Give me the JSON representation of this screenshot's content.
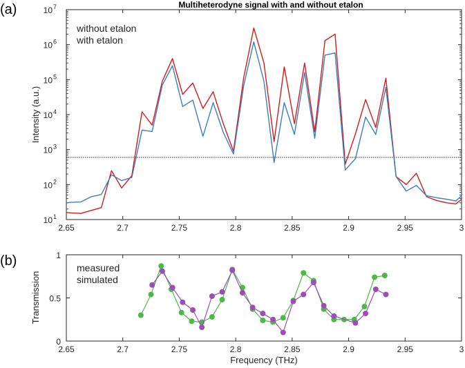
{
  "colors": {
    "without": "#d7191c",
    "with": "#3a7ebf",
    "measured": "#9b4fb5",
    "simulated": "#4db848",
    "axis": "#262626"
  },
  "chart_data": [
    {
      "panel_label": "(a)",
      "type": "line",
      "title": "Multiheterodyne signal with and without etalon",
      "xlabel": "",
      "ylabel": "Intensity (a.u.)",
      "yscale": "log",
      "xlim": [
        2.65,
        3.0
      ],
      "ylim": [
        10,
        10000000
      ],
      "x_ticks": [
        2.65,
        2.7,
        2.75,
        2.8,
        2.85,
        2.9,
        2.95,
        3.0
      ],
      "x_tick_labels": [
        "2.65",
        "2.7",
        "2.75",
        "2.8",
        "2.85",
        "2.9",
        "2.95",
        "3"
      ],
      "y_ticks": [
        {
          "base": "10",
          "exp": "1"
        },
        {
          "base": "10",
          "exp": "2"
        },
        {
          "base": "10",
          "exp": "3"
        },
        {
          "base": "10",
          "exp": "4"
        },
        {
          "base": "10",
          "exp": "5"
        },
        {
          "base": "10",
          "exp": "6"
        },
        {
          "base": "10",
          "exp": "7"
        }
      ],
      "threshold": 600,
      "legend": [
        "without etalon",
        "with etalon"
      ],
      "series": [
        {
          "name": "without etalon",
          "x": [
            2.65,
            2.654,
            2.663,
            2.681,
            2.69,
            2.699,
            2.708,
            2.717,
            2.726,
            2.735,
            2.744,
            2.753,
            2.762,
            2.771,
            2.78,
            2.789,
            2.798,
            2.807,
            2.816,
            2.825,
            2.834,
            2.843,
            2.852,
            2.861,
            2.87,
            2.879,
            2.888,
            2.897,
            2.906,
            2.915,
            2.924,
            2.933,
            2.942,
            2.951,
            2.96,
            2.969,
            2.978,
            2.987,
            2.995,
            3.0
          ],
          "y": [
            16,
            15.5,
            15,
            22,
            250,
            80,
            180,
            12000,
            5000,
            90000,
            400000,
            38000,
            80000,
            15000,
            45000,
            5500,
            900,
            110000,
            3000000,
            300000,
            1700,
            230000,
            5500,
            300000,
            3200,
            1300000,
            2000000,
            380,
            2800,
            27000,
            4300,
            110000,
            170,
            100,
            210,
            45,
            35,
            30,
            28,
            38
          ]
        },
        {
          "name": "with etalon",
          "x": [
            2.65,
            2.654,
            2.663,
            2.672,
            2.681,
            2.69,
            2.699,
            2.708,
            2.717,
            2.726,
            2.735,
            2.744,
            2.753,
            2.762,
            2.771,
            2.78,
            2.789,
            2.798,
            2.807,
            2.816,
            2.825,
            2.834,
            2.843,
            2.852,
            2.861,
            2.87,
            2.879,
            2.888,
            2.897,
            2.906,
            2.915,
            2.924,
            2.933,
            2.942,
            2.951,
            2.96,
            2.969,
            2.978,
            2.987,
            2.995,
            3.0
          ],
          "y": [
            30,
            31,
            32,
            45,
            52,
            190,
            130,
            160,
            3600,
            3300,
            70000,
            250000,
            17000,
            26000,
            2400,
            22000,
            3100,
            750,
            65000,
            1200000,
            90000,
            430,
            22000,
            2700,
            160000,
            2100,
            500000,
            580000,
            260,
            550,
            8500,
            2700,
            60000,
            170,
            65,
            95,
            48,
            42,
            38,
            34,
            48
          ]
        }
      ]
    },
    {
      "panel_label": "(b)",
      "type": "line",
      "title": "",
      "xlabel": "Frequency (THz)",
      "ylabel": "Transmission",
      "xlim": [
        2.65,
        3.0
      ],
      "ylim": [
        0,
        1
      ],
      "x_ticks": [
        2.65,
        2.7,
        2.75,
        2.8,
        2.85,
        2.9,
        2.95,
        3.0
      ],
      "x_tick_labels": [
        "2.65",
        "2.7",
        "2.75",
        "2.8",
        "2.85",
        "2.9",
        "2.95",
        "3"
      ],
      "y_ticks": [
        0,
        0.5,
        1
      ],
      "y_tick_labels": [
        "0",
        "0.5",
        "1"
      ],
      "legend": [
        "measured",
        "simulated"
      ],
      "series": [
        {
          "name": "simulated",
          "x": [
            2.716,
            2.725,
            2.734,
            2.743,
            2.752,
            2.761,
            2.77,
            2.779,
            2.788,
            2.797,
            2.806,
            2.815,
            2.824,
            2.833,
            2.842,
            2.851,
            2.86,
            2.869,
            2.878,
            2.887,
            2.896,
            2.905,
            2.914,
            2.923,
            2.932
          ],
          "y": [
            0.3,
            0.54,
            0.87,
            0.6,
            0.33,
            0.23,
            0.22,
            0.28,
            0.48,
            0.83,
            0.62,
            0.37,
            0.24,
            0.22,
            0.27,
            0.47,
            0.79,
            0.7,
            0.37,
            0.25,
            0.25,
            0.25,
            0.4,
            0.74,
            0.76
          ]
        },
        {
          "name": "measured",
          "x": [
            2.726,
            2.735,
            2.744,
            2.753,
            2.762,
            2.77,
            2.779,
            2.788,
            2.797,
            2.806,
            2.815,
            2.824,
            2.833,
            2.842,
            2.851,
            2.86,
            2.869,
            2.878,
            2.887,
            2.906,
            2.915,
            2.924,
            2.933
          ],
          "y": [
            0.65,
            0.81,
            0.62,
            0.45,
            0.36,
            0.16,
            0.52,
            0.57,
            0.82,
            0.56,
            0.39,
            0.32,
            0.25,
            0.1,
            0.46,
            0.54,
            0.68,
            0.41,
            0.29,
            0.21,
            0.32,
            0.6,
            0.54
          ]
        }
      ]
    }
  ]
}
